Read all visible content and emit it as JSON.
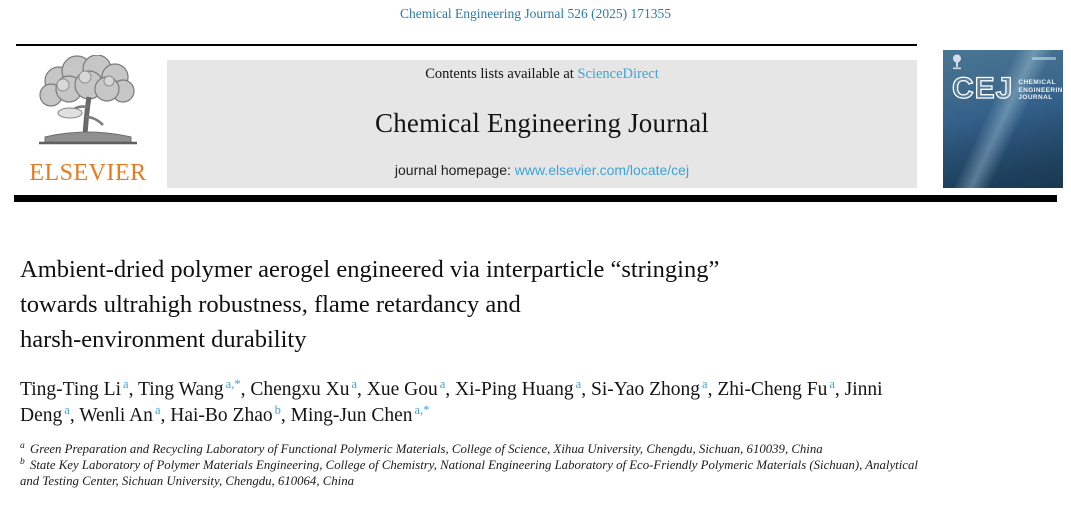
{
  "page": {
    "citation": "Chemical Engineering Journal 526 (2025) 171355"
  },
  "banner": {
    "contents_line_prefix": "Contents lists available at ",
    "sciencedirect_link": "ScienceDirect",
    "journal_title": "Chemical Engineering Journal",
    "homepage_prefix": "journal homepage: ",
    "homepage_url": "www.elsevier.com/locate/cej"
  },
  "publisher": {
    "name": "ELSEVIER"
  },
  "cover": {
    "acronym": "CEJ",
    "title_lines": [
      "CHEMICAL",
      "ENGINEERING",
      "JOURNAL"
    ]
  },
  "article": {
    "title_lines": [
      "Ambient-dried polymer aerogel engineered via interparticle “stringing”",
      "towards ultrahigh robustness, flame retardancy and",
      "harsh-environment durability"
    ],
    "authors": [
      {
        "name": "Ting-Ting Li",
        "sup": "a"
      },
      {
        "name": "Ting Wang",
        "sup": "a,*"
      },
      {
        "name": "Chengxu Xu",
        "sup": "a"
      },
      {
        "name": "Xue Gou",
        "sup": "a"
      },
      {
        "name": "Xi-Ping Huang",
        "sup": "a"
      },
      {
        "name": "Si-Yao Zhong",
        "sup": "a"
      },
      {
        "name": "Zhi-Cheng Fu",
        "sup": "a"
      },
      {
        "name": "Jinni Deng",
        "sup": "a"
      },
      {
        "name": "Wenli An",
        "sup": "a"
      },
      {
        "name": "Hai-Bo Zhao",
        "sup": "b"
      },
      {
        "name": "Ming-Jun Chen",
        "sup": "a,*"
      }
    ],
    "affiliations": [
      {
        "sup": "a",
        "text": "Green Preparation and Recycling Laboratory of Functional Polymeric Materials, College of Science, Xihua University, Chengdu, Sichuan, 610039, China"
      },
      {
        "sup": "b",
        "text": "State Key Laboratory of Polymer Materials Engineering, College of Chemistry, National Engineering Laboratory of Eco-Friendly Polymeric Materials (Sichuan), Analytical and Testing Center, Sichuan University, Chengdu, 610064, China"
      }
    ]
  },
  "colors": {
    "citation_blue": "#2b7aa8",
    "link_blue": "#3da4da",
    "elsevier_orange": "#e8791f",
    "banner_gray": "#e6e6e6"
  }
}
